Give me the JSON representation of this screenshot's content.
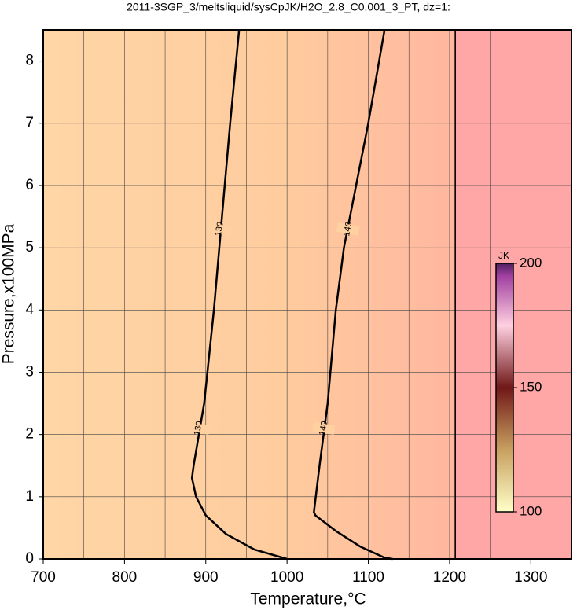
{
  "chart_data": {
    "type": "contour",
    "title": "2011-3SGP_3/meltsliquid/sysCpJK/H2O_2.8_C0.001_3_PT, dz=1:",
    "x_label": "Temperature,°C",
    "y_label": "Pressure,x100MPa",
    "xlim": [
      700,
      1350
    ],
    "ylim": [
      0,
      8.5
    ],
    "xticks": [
      700,
      800,
      900,
      1000,
      1100,
      1200,
      1300
    ],
    "xminor": [
      750,
      850,
      950,
      1050,
      1150,
      1250
    ],
    "yticks": [
      0,
      1,
      2,
      3,
      4,
      5,
      6,
      7,
      8
    ],
    "grid": true,
    "boundary_x": 1207,
    "series": [
      {
        "name": "130",
        "color": "#000000",
        "x": [
          941,
          930,
          920,
          910,
          898,
          885,
          883,
          888,
          900,
          925,
          960,
          1000
        ],
        "y": [
          8.5,
          7,
          5.5,
          4,
          2.5,
          1.5,
          1.3,
          1.0,
          0.7,
          0.4,
          0.15,
          0
        ]
      },
      {
        "name": "140",
        "color": "#000000",
        "x": [
          1120,
          1100,
          1085,
          1070,
          1060,
          1050,
          1040,
          1033,
          1035,
          1060,
          1090,
          1120,
          1130
        ],
        "y": [
          8.5,
          7,
          6,
          5,
          4,
          2.5,
          1.5,
          0.75,
          0.7,
          0.45,
          0.2,
          0.02,
          0
        ]
      }
    ],
    "contour_labels": [
      {
        "series": 0,
        "x": 917,
        "y": 5.3
      },
      {
        "series": 0,
        "x": 891,
        "y": 2.1
      },
      {
        "series": 1,
        "x": 1075,
        "y": 5.3
      },
      {
        "series": 1,
        "x": 1045,
        "y": 2.1
      }
    ],
    "colorbar": {
      "label": "JK",
      "clim": [
        100,
        200
      ],
      "ticks": [
        100,
        150,
        200
      ]
    }
  }
}
